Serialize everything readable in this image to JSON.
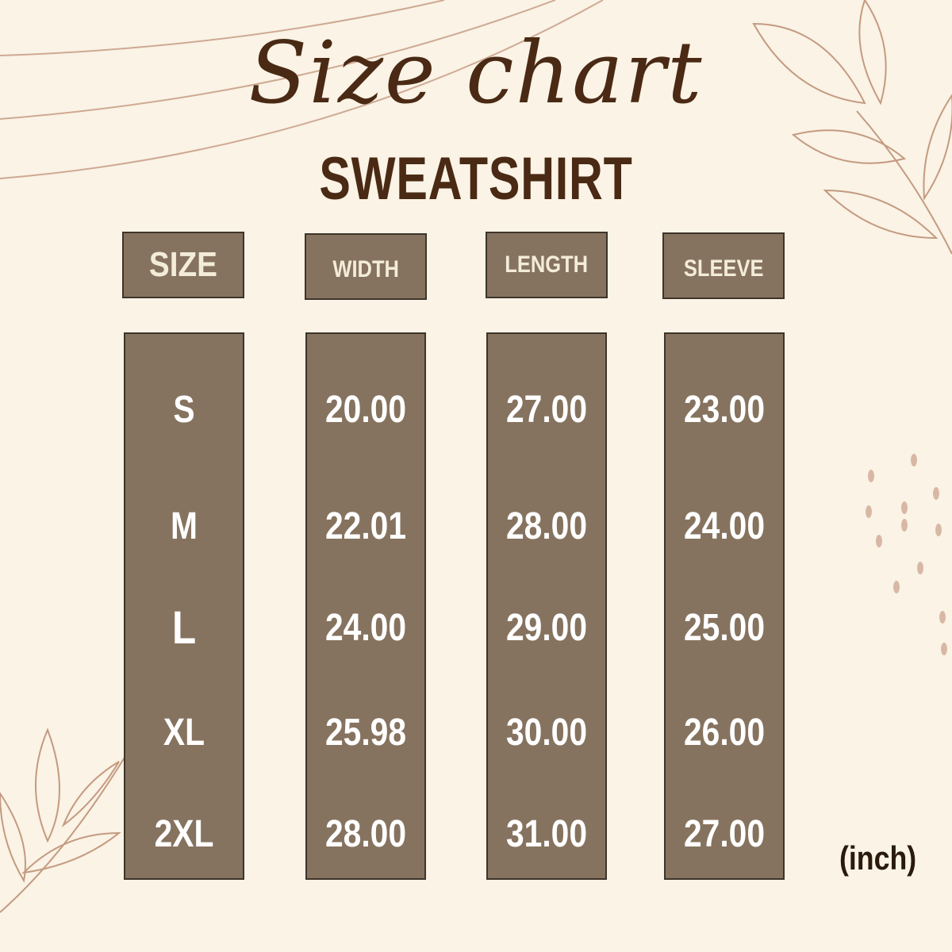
{
  "title": "Size chart",
  "subtitle": "SWEATSHIRT",
  "headers": [
    "SIZE",
    "WIDTH",
    "LENGTH",
    "SLEEVE"
  ],
  "columns": [
    [
      "S",
      "M",
      "L",
      "XL",
      "2XL"
    ],
    [
      "20.00",
      "22.01",
      "24.00",
      "25.98",
      "28.00"
    ],
    [
      "27.00",
      "28.00",
      "29.00",
      "30.00",
      "31.00"
    ],
    [
      "23.00",
      "24.00",
      "25.00",
      "26.00",
      "27.00"
    ]
  ],
  "unit": "(inch)",
  "colors": {
    "background": "#faf3e6",
    "box": "#86735f",
    "title": "#4a2a14",
    "header_text": "#f3ecd8",
    "value_text": "#ffffff",
    "leaf": "#c49a80"
  }
}
